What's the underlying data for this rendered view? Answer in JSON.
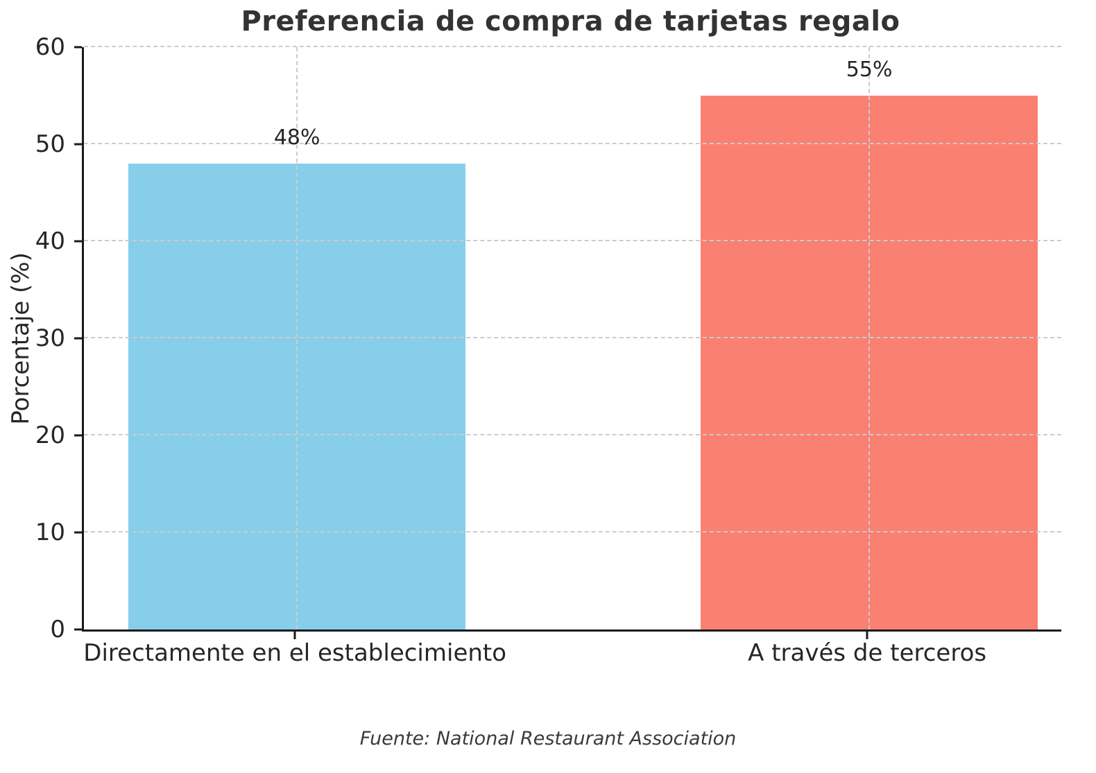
{
  "chart_data": {
    "type": "bar",
    "title": "Preferencia de compra de tarjetas regalo",
    "categories": [
      "Directamente en el establecimiento",
      "A través de terceros"
    ],
    "values": [
      48,
      55
    ],
    "bar_labels": [
      "48%",
      "55%"
    ],
    "bar_colors": [
      "#87CEEB",
      "#FA8072"
    ],
    "xlabel": "",
    "ylabel": "Porcentaje (%)",
    "ylim": [
      0,
      60
    ],
    "yticks": [
      0,
      10,
      20,
      30,
      40,
      50,
      60
    ],
    "grid": true,
    "legend_position": "none",
    "source_note": "Fuente: National Restaurant Association"
  },
  "colors": {
    "grid": "#cccccc",
    "axis": "#1a1a1a",
    "text": "#262626",
    "title": "#333333"
  }
}
